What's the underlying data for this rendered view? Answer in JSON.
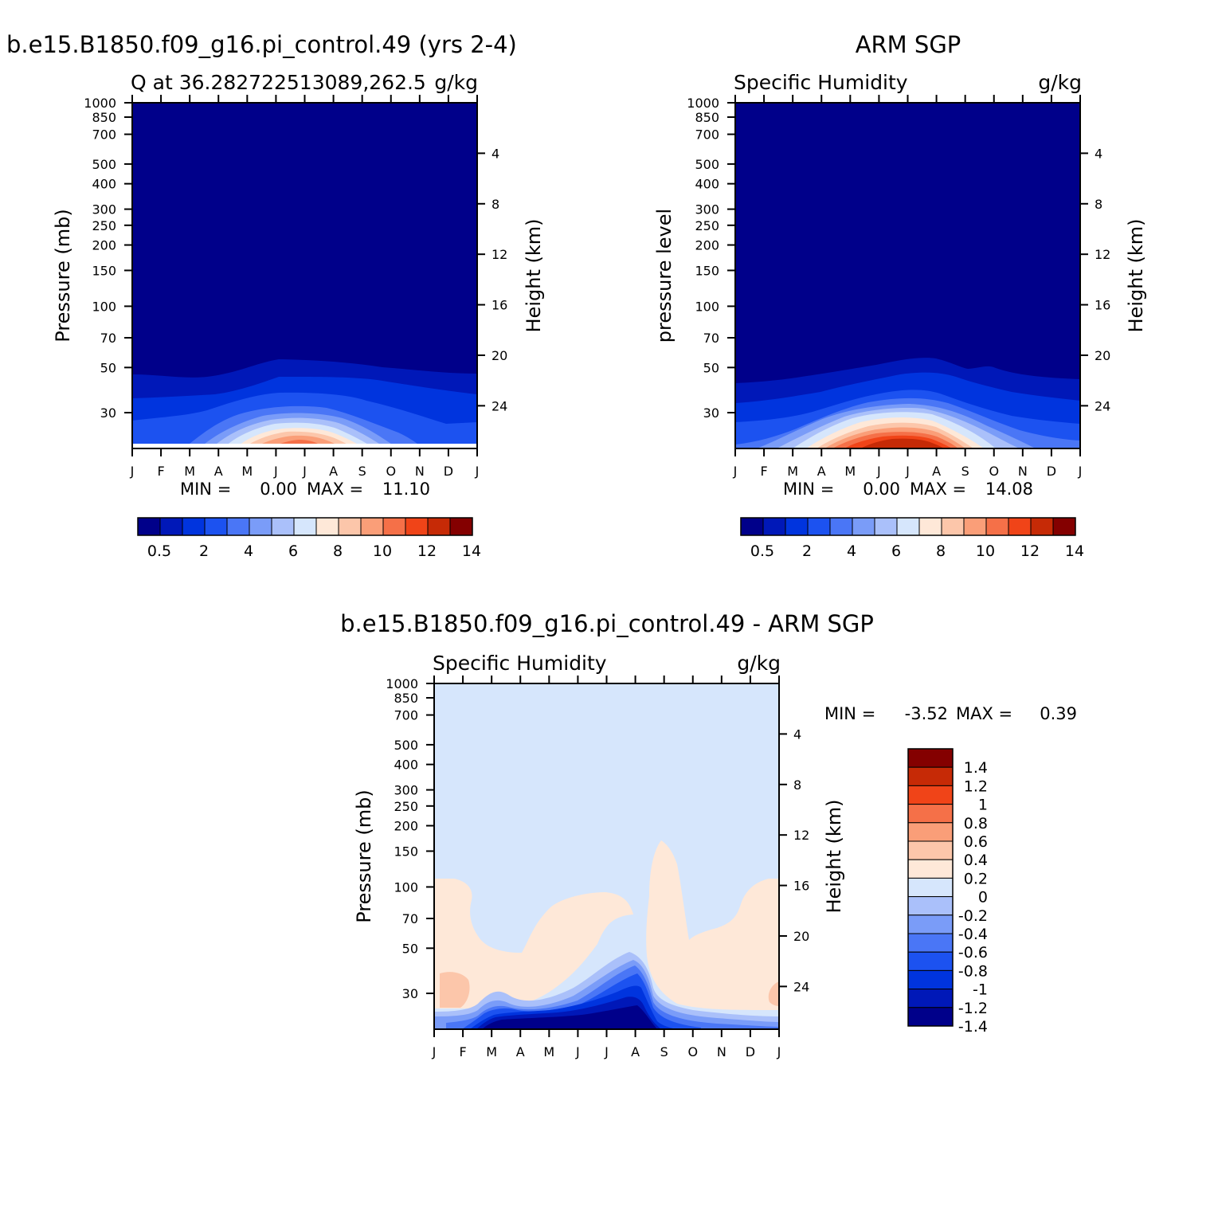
{
  "header": {
    "left_title": "b.e15.B1850.f09_g16.pi_control.49 (yrs 2-4)",
    "right_title": "ARM SGP",
    "diff_title": "b.e15.B1850.f09_g16.pi_control.49 - ARM SGP"
  },
  "chart_data": [
    {
      "type": "heatmap",
      "name": "model",
      "subtitle_left": "Q at 36.282722513089,262.5",
      "subtitle_right": "g/kg",
      "ylabel_left": "Pressure (mb)",
      "ylabel_right": "Height (km)",
      "x_ticks": [
        "J",
        "F",
        "M",
        "A",
        "M",
        "J",
        "J",
        "A",
        "S",
        "O",
        "N",
        "D",
        "J"
      ],
      "y_ticks": [
        30,
        50,
        70,
        100,
        150,
        200,
        250,
        300,
        400,
        500,
        700,
        850,
        1000
      ],
      "height_ticks": [
        24,
        20,
        16,
        12,
        8,
        4
      ],
      "stats": {
        "min_label": "MIN =",
        "min": "0.00",
        "max_label": "MAX =",
        "max": "11.10"
      },
      "colorbar": {
        "labels": [
          "0.5",
          "2",
          "4",
          "6",
          "8",
          "10",
          "12",
          "14"
        ],
        "colors": [
          "#00008a",
          "#0018b8",
          "#0034de",
          "#1c52f0",
          "#4a76f6",
          "#7a9cf8",
          "#aac0fa",
          "#d6e6fc",
          "#fee8d8",
          "#fcc6aa",
          "#fa9e78",
          "#f57048",
          "#f04418",
          "#c62a06",
          "#840000"
        ]
      },
      "ylim": [
        1000,
        20
      ],
      "surface_pressure": 960
    },
    {
      "type": "heatmap",
      "name": "obs",
      "subtitle_left": "Specific Humidity",
      "subtitle_right": "g/kg",
      "ylabel_left": "pressure level",
      "ylabel_right": "Height (km)",
      "x_ticks": [
        "J",
        "F",
        "M",
        "A",
        "M",
        "J",
        "J",
        "A",
        "S",
        "O",
        "N",
        "D",
        "J"
      ],
      "y_ticks": [
        30,
        50,
        70,
        100,
        150,
        200,
        250,
        300,
        400,
        500,
        700,
        850,
        1000
      ],
      "height_ticks": [
        24,
        20,
        16,
        12,
        8,
        4
      ],
      "stats": {
        "min_label": "MIN =",
        "min": "0.00",
        "max_label": "MAX =",
        "max": "14.08"
      },
      "colorbar": {
        "labels": [
          "0.5",
          "2",
          "4",
          "6",
          "8",
          "10",
          "12",
          "14"
        ],
        "colors": [
          "#00008a",
          "#0018b8",
          "#0034de",
          "#1c52f0",
          "#4a76f6",
          "#7a9cf8",
          "#aac0fa",
          "#d6e6fc",
          "#fee8d8",
          "#fcc6aa",
          "#fa9e78",
          "#f57048",
          "#f04418",
          "#c62a06",
          "#840000"
        ]
      },
      "ylim": [
        1000,
        20
      ]
    },
    {
      "type": "heatmap",
      "name": "diff",
      "subtitle_left": "Specific Humidity",
      "subtitle_right": "g/kg",
      "ylabel_left": "Pressure (mb)",
      "ylabel_right": "Height (km)",
      "x_ticks": [
        "J",
        "F",
        "M",
        "A",
        "M",
        "J",
        "J",
        "A",
        "S",
        "O",
        "N",
        "D",
        "J"
      ],
      "y_ticks": [
        30,
        50,
        70,
        100,
        150,
        200,
        250,
        300,
        400,
        500,
        700,
        850,
        1000
      ],
      "height_ticks": [
        24,
        20,
        16,
        12,
        8,
        4
      ],
      "stats": {
        "min_label": "MIN =",
        "min": "-3.52",
        "max_label": "MAX =",
        "max": "0.39"
      },
      "colorbar": {
        "labels": [
          "1.4",
          "1.2",
          "1",
          "0.8",
          "0.6",
          "0.4",
          "0.2",
          "0",
          "-0.2",
          "-0.4",
          "-0.6",
          "-0.8",
          "-1",
          "-1.2",
          "-1.4"
        ],
        "colors": [
          "#840000",
          "#c62a06",
          "#f04418",
          "#f57048",
          "#fa9e78",
          "#fcc6aa",
          "#fee8d8",
          "#d6e6fc",
          "#aac0fa",
          "#7a9cf8",
          "#4a76f6",
          "#1c52f0",
          "#0034de",
          "#0018b8",
          "#00008a"
        ]
      },
      "ylim": [
        1000,
        20
      ]
    }
  ]
}
